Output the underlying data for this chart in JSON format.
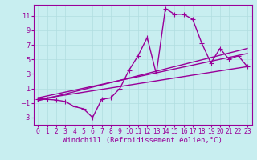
{
  "xlabel": "Windchill (Refroidissement éolien,°C)",
  "background_color": "#c8eef0",
  "grid_color": "#b0dde0",
  "line_color": "#990099",
  "xlim": [
    -0.5,
    23.5
  ],
  "ylim": [
    -4,
    12.5
  ],
  "xticks": [
    0,
    1,
    2,
    3,
    4,
    5,
    6,
    7,
    8,
    9,
    10,
    11,
    12,
    13,
    14,
    15,
    16,
    17,
    18,
    19,
    20,
    21,
    22,
    23
  ],
  "yticks": [
    -3,
    -1,
    1,
    3,
    5,
    7,
    9,
    11
  ],
  "x_data": [
    0,
    1,
    2,
    3,
    4,
    5,
    6,
    7,
    8,
    9,
    10,
    11,
    12,
    13,
    14,
    15,
    16,
    17,
    18,
    19,
    20,
    21,
    22,
    23
  ],
  "y_main": [
    -0.5,
    -0.5,
    -0.6,
    -0.8,
    -1.5,
    -1.8,
    -3.0,
    -0.5,
    -0.3,
    1.0,
    3.5,
    5.5,
    8.0,
    3.0,
    12.0,
    11.2,
    11.2,
    10.5,
    7.2,
    4.5,
    6.5,
    5.0,
    5.5,
    4.0
  ],
  "trend1_x": [
    0,
    23
  ],
  "trend1_y": [
    -0.5,
    4.0
  ],
  "trend2_x": [
    0,
    23
  ],
  "trend2_y": [
    -0.3,
    5.8
  ],
  "trend3_x": [
    0,
    23
  ],
  "trend3_y": [
    -0.7,
    6.5
  ],
  "marker_size": 3,
  "line_width": 1.0,
  "tick_fontsize": 6,
  "label_fontsize": 6.5
}
